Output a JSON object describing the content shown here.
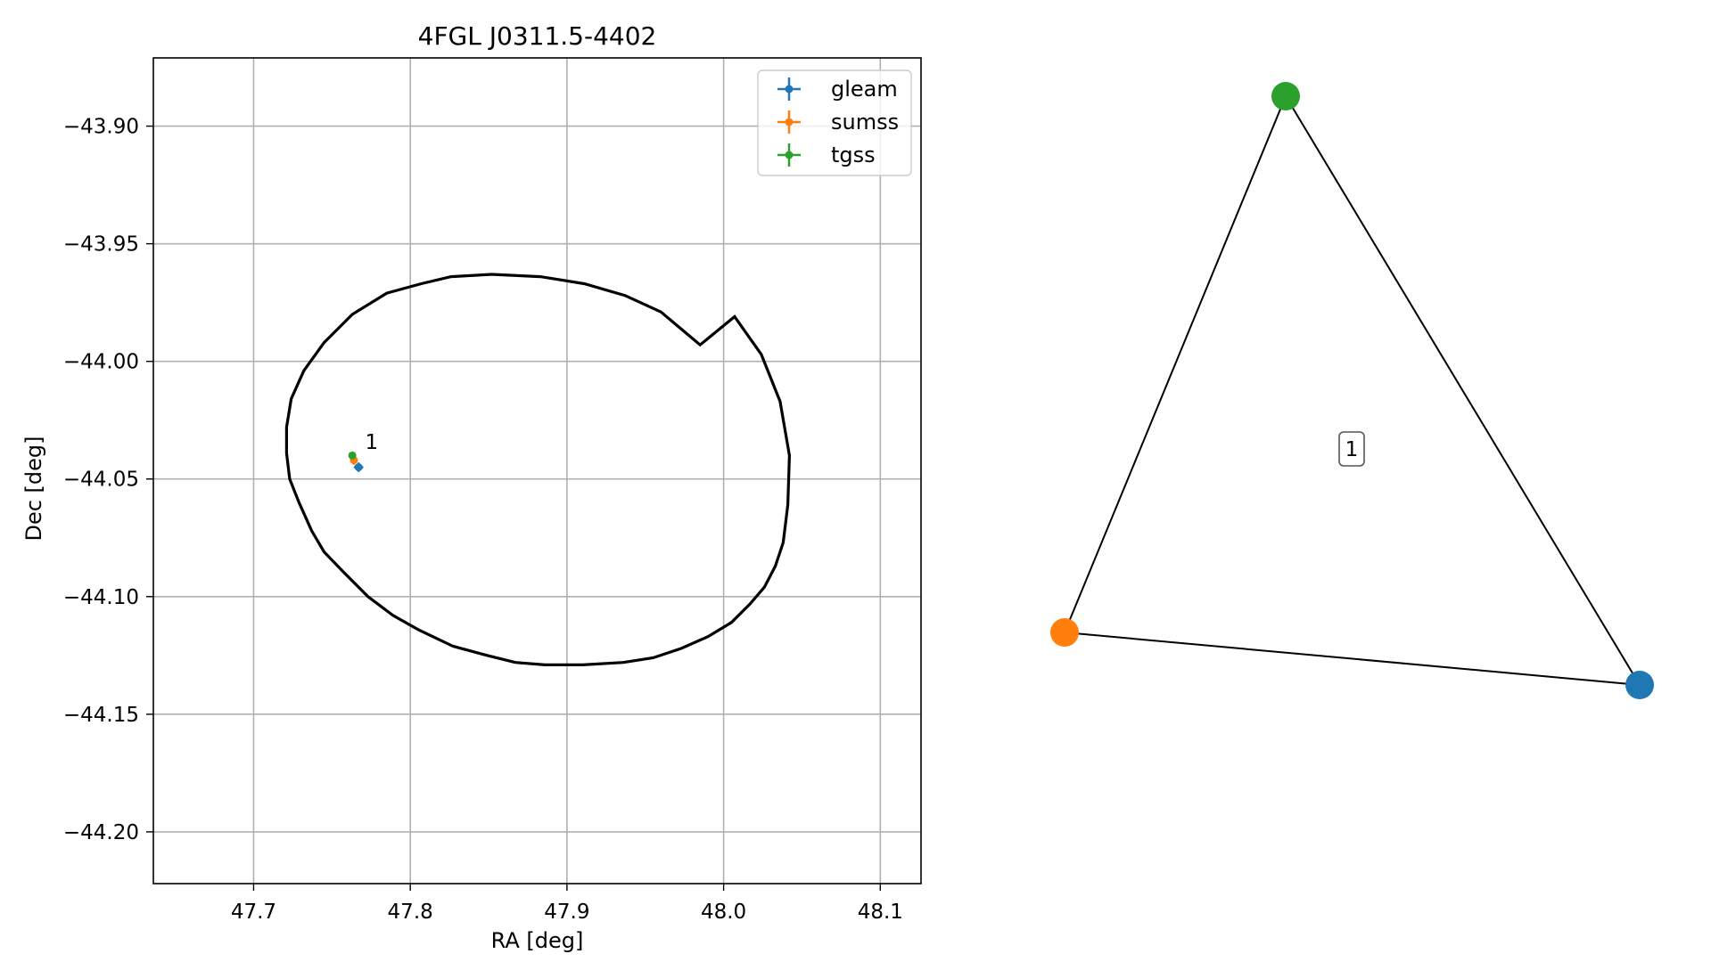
{
  "chart_data": [
    {
      "type": "scatter",
      "title": "4FGL J0311.5-4402",
      "xlabel": "RA [deg]",
      "ylabel": "Dec [deg]",
      "xlim": [
        47.636,
        48.126
      ],
      "ylim": [
        -44.222,
        -43.871
      ],
      "xticks": [
        47.7,
        47.8,
        47.9,
        48.0,
        48.1
      ],
      "xtick_labels": [
        "47.7",
        "47.8",
        "47.9",
        "48.0",
        "48.1"
      ],
      "yticks": [
        -43.9,
        -43.95,
        -44.0,
        -44.05,
        -44.1,
        -44.15,
        -44.2
      ],
      "ytick_labels": [
        "−43.90",
        "−43.95",
        "−44.00",
        "−44.05",
        "−44.10",
        "−44.15",
        "−44.20"
      ],
      "grid": true,
      "legend_position": "top-right",
      "series": [
        {
          "name": "gleam",
          "color": "#1f77b4",
          "x": [
            47.767
          ],
          "y": [
            -44.045
          ],
          "xerr": [
            0.003
          ],
          "yerr": [
            0.002
          ]
        },
        {
          "name": "sumss",
          "color": "#ff7f0e",
          "x": [
            47.764
          ],
          "y": [
            -44.042
          ],
          "xerr": [
            0.002
          ],
          "yerr": [
            0.002
          ]
        },
        {
          "name": "tgss",
          "color": "#2ca02c",
          "x": [
            47.763
          ],
          "y": [
            -44.04
          ],
          "xerr": [
            0.001
          ],
          "yerr": [
            0.001
          ]
        }
      ],
      "ellipse": {
        "color": "#000000",
        "center": [
          47.881,
          -44.046
        ],
        "points": [
          [
            48.041,
            -44.061
          ],
          [
            48.042,
            -44.04
          ],
          [
            48.036,
            -44.017
          ],
          [
            48.024,
            -43.997
          ],
          [
            48.007,
            -43.981
          ],
          [
            47.985,
            -43.993
          ],
          [
            47.96,
            -43.979
          ],
          [
            47.937,
            -43.972
          ],
          [
            47.911,
            -43.967
          ],
          [
            47.883,
            -43.964
          ],
          [
            47.852,
            -43.963
          ],
          [
            47.826,
            -43.964
          ],
          [
            47.807,
            -43.967
          ],
          [
            47.785,
            -43.971
          ],
          [
            47.763,
            -43.98
          ],
          [
            47.745,
            -43.992
          ],
          [
            47.732,
            -44.004
          ],
          [
            47.724,
            -44.016
          ],
          [
            47.721,
            -44.028
          ],
          [
            47.721,
            -44.039
          ],
          [
            47.723,
            -44.05
          ],
          [
            47.729,
            -44.06
          ],
          [
            47.737,
            -44.072
          ],
          [
            47.745,
            -44.081
          ],
          [
            47.758,
            -44.09
          ],
          [
            47.773,
            -44.1
          ],
          [
            47.789,
            -44.108
          ],
          [
            47.805,
            -44.114
          ],
          [
            47.827,
            -44.121
          ],
          [
            47.849,
            -44.125
          ],
          [
            47.867,
            -44.128
          ],
          [
            47.886,
            -44.129
          ],
          [
            47.91,
            -44.129
          ],
          [
            47.936,
            -44.128
          ],
          [
            47.955,
            -44.126
          ],
          [
            47.973,
            -44.122
          ],
          [
            47.99,
            -44.117
          ],
          [
            48.005,
            -44.111
          ],
          [
            48.017,
            -44.103
          ],
          [
            48.026,
            -44.096
          ],
          [
            48.033,
            -44.087
          ],
          [
            48.038,
            -44.077
          ],
          [
            48.041,
            -44.061
          ]
        ]
      },
      "annotations": [
        {
          "text": "1",
          "x": 47.77,
          "y": -44.038
        }
      ]
    },
    {
      "type": "graph",
      "nodes": [
        {
          "name": "gleam",
          "color": "#1f77b4"
        },
        {
          "name": "sumss",
          "color": "#ff7f0e"
        },
        {
          "name": "tgss",
          "color": "#2ca02c"
        }
      ],
      "edges": [
        [
          "tgss",
          "sumss"
        ],
        [
          "sumss",
          "gleam"
        ],
        [
          "gleam",
          "tgss"
        ]
      ],
      "center_label": "1"
    }
  ]
}
